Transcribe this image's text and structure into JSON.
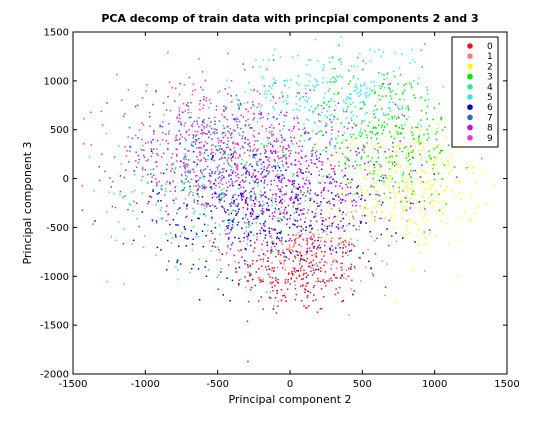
{
  "chart_data": {
    "type": "scatter",
    "title": "PCA decomp of train data with princpial components 2 and 3",
    "xlabel": "Principal component 2",
    "ylabel": "Principal component 3",
    "xlim": [
      -1500,
      1500
    ],
    "ylim": [
      -2000,
      1500
    ],
    "xticks": [
      "-1500",
      "-1000",
      "-500",
      "0",
      "500",
      "1000",
      "1500"
    ],
    "xtick_values": [
      -1500,
      -1000,
      -500,
      0,
      500,
      1000,
      1500
    ],
    "yticks": [
      "-2000",
      "-1500",
      "-1000",
      "-500",
      "0",
      "500",
      "1000",
      "1500"
    ],
    "ytick_values": [
      -2000,
      -1500,
      -1000,
      -500,
      0,
      500,
      1000,
      1500
    ],
    "grid": false,
    "legend_position": "top-right",
    "series": [
      {
        "name": "0",
        "color": "#e41a1c",
        "cx": 50,
        "cy": -950,
        "sx": 220,
        "sy": 220,
        "n": 260
      },
      {
        "name": "1",
        "color": "#f08080",
        "cx": 150,
        "cy": -650,
        "sx": 280,
        "sy": 260,
        "n": 220
      },
      {
        "name": "2",
        "color": "#ffff00",
        "cx": 850,
        "cy": -100,
        "sx": 230,
        "sy": 300,
        "n": 260
      },
      {
        "name": "3",
        "color": "#00e600",
        "cx": 650,
        "cy": 450,
        "sx": 300,
        "sy": 380,
        "n": 360
      },
      {
        "name": "4",
        "color": "#33e68c",
        "cx": -450,
        "cy": -150,
        "sx": 400,
        "sy": 380,
        "n": 260
      },
      {
        "name": "5",
        "color": "#33e6e6",
        "cx": 300,
        "cy": 850,
        "sx": 330,
        "sy": 260,
        "n": 300
      },
      {
        "name": "6",
        "color": "#0000cc",
        "cx": -150,
        "cy": -350,
        "sx": 400,
        "sy": 340,
        "n": 420
      },
      {
        "name": "7",
        "color": "#3366cc",
        "cx": -550,
        "cy": 250,
        "sx": 330,
        "sy": 330,
        "n": 340
      },
      {
        "name": "8",
        "color": "#cc00ff",
        "cx": 0,
        "cy": -50,
        "sx": 380,
        "sy": 360,
        "n": 460
      },
      {
        "name": "9",
        "color": "#ff33cc",
        "cx": -550,
        "cy": 300,
        "sx": 330,
        "sy": 330,
        "n": 420
      }
    ]
  }
}
